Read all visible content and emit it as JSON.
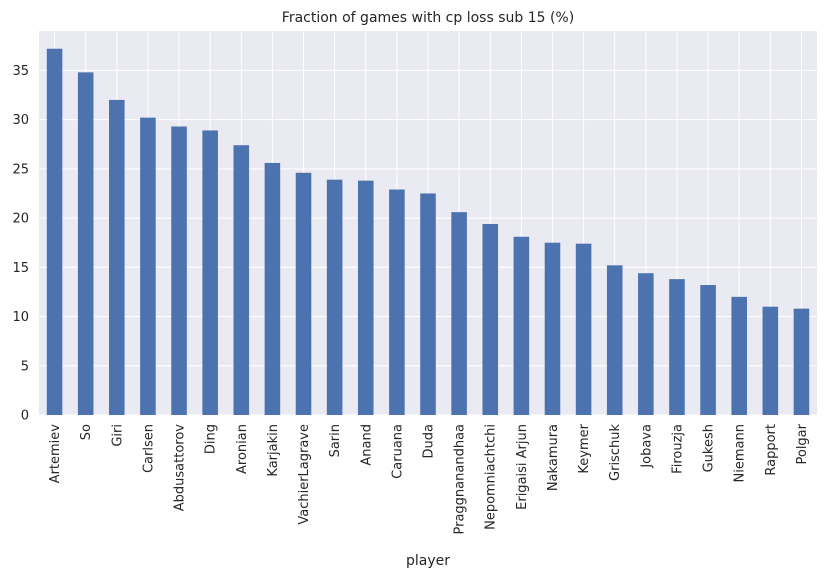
{
  "chart_data": {
    "type": "bar",
    "title": "Fraction of games with cp loss sub 15 (%)",
    "xlabel": "player",
    "ylabel": "",
    "ylim": [
      0,
      39
    ],
    "yticks": [
      0,
      5,
      10,
      15,
      20,
      25,
      30,
      35
    ],
    "grid": true,
    "bar_color": "#4c72b0",
    "plot_background": "#eaeaf2",
    "grid_color": "#ffffff",
    "categories": [
      "Artemiev",
      "So",
      "Giri",
      "Carlsen",
      "Abdusattorov",
      "Ding",
      "Aronian",
      "Karjakin",
      "VachierLagrave",
      "Sarin",
      "Anand",
      "Caruana",
      "Duda",
      "Praggnanandhaa",
      "Nepomniachtchi",
      "Erigaisi Arjun",
      "Nakamura",
      "Keymer",
      "Grischuk",
      "Jobava",
      "Firouzja",
      "Gukesh",
      "Niemann",
      "Rapport",
      "Polgar"
    ],
    "values": [
      37.2,
      34.8,
      32.0,
      30.2,
      29.3,
      28.9,
      27.4,
      25.6,
      24.6,
      23.9,
      23.8,
      22.9,
      22.5,
      20.6,
      19.4,
      18.1,
      17.5,
      17.4,
      15.2,
      14.4,
      13.8,
      13.2,
      12.0,
      11.0,
      10.8
    ]
  }
}
